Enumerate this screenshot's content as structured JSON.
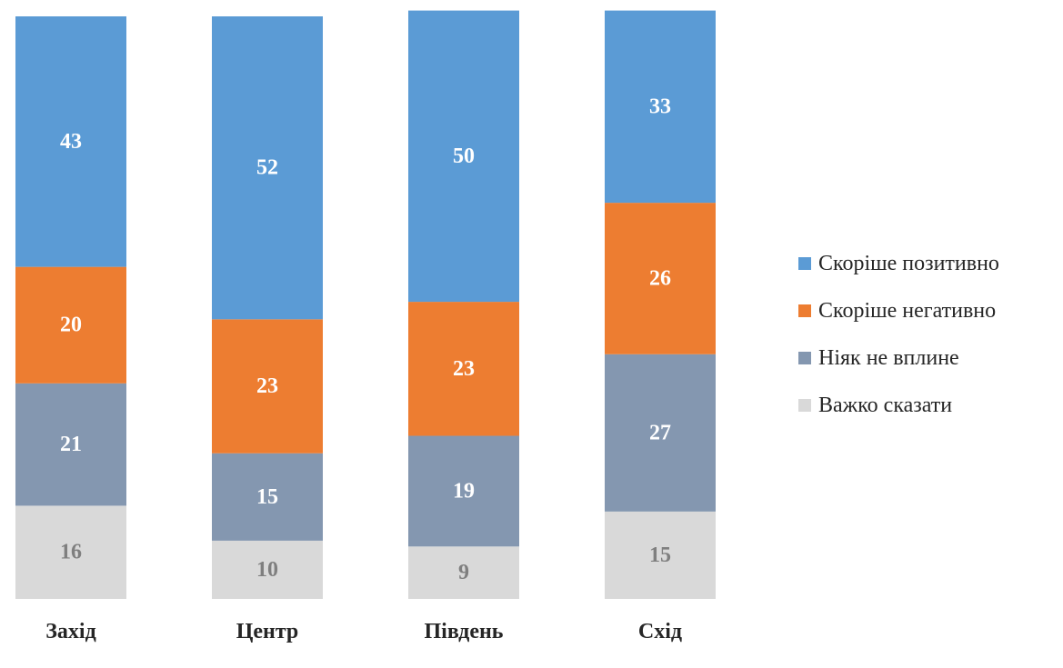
{
  "chart_data": {
    "type": "bar",
    "stacked": true,
    "categories": [
      "Захід",
      "Центр",
      "Південь",
      "Схід"
    ],
    "series": [
      {
        "name": "Скоріше позитивно",
        "color": "#5B9BD5",
        "label_color": "#ffffff",
        "values": [
          43,
          52,
          50,
          33
        ]
      },
      {
        "name": "Скоріше негативно",
        "color": "#ED7D31",
        "label_color": "#ffffff",
        "values": [
          20,
          23,
          23,
          26
        ]
      },
      {
        "name": "Ніяк не вплине",
        "color": "#8497B0",
        "label_color": "#ffffff",
        "values": [
          21,
          15,
          19,
          27
        ]
      },
      {
        "name": "Важко сказати",
        "color": "#D9D9D9",
        "label_color": "#7F7F7F",
        "values": [
          16,
          10,
          9,
          15
        ]
      }
    ],
    "title": "",
    "xlabel": "",
    "ylabel": "",
    "ylim": [
      0,
      100
    ],
    "grid": false,
    "legend_position": "right"
  }
}
